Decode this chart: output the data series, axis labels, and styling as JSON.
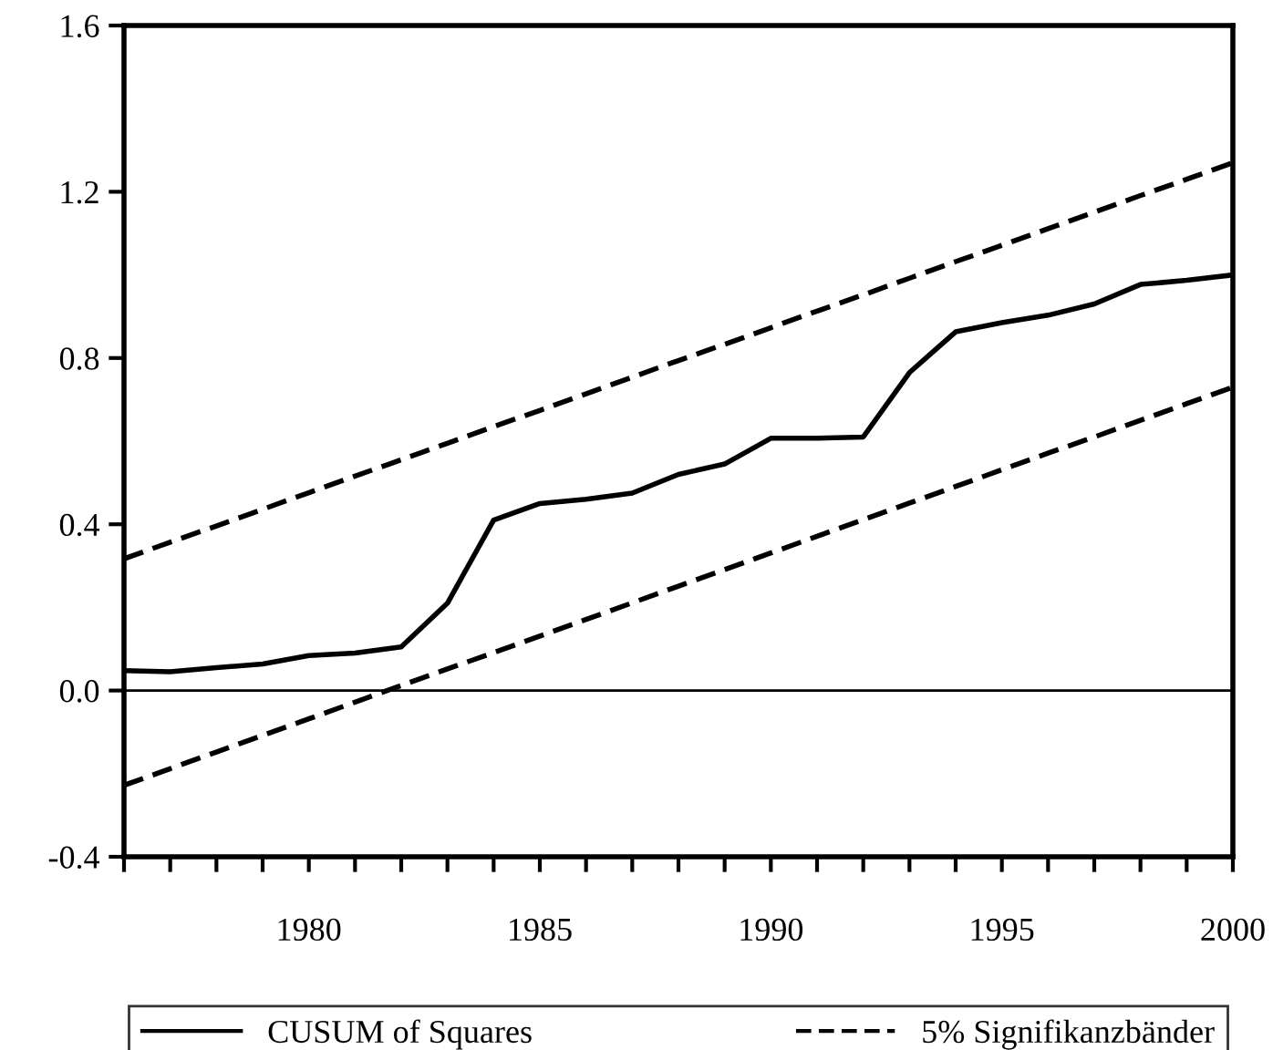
{
  "chart_data": {
    "type": "line",
    "x": [
      1976,
      1977,
      1978,
      1979,
      1980,
      1981,
      1982,
      1983,
      1984,
      1985,
      1986,
      1987,
      1988,
      1989,
      1990,
      1991,
      1992,
      1993,
      1994,
      1995,
      1996,
      1997,
      1998,
      1999,
      2000
    ],
    "series": [
      {
        "name": "CUSUM of Squares",
        "color": "#000000",
        "line_style": "solid",
        "values": [
          0.048,
          0.045,
          0.055,
          0.064,
          0.084,
          0.09,
          0.105,
          0.21,
          0.41,
          0.45,
          0.46,
          0.475,
          0.52,
          0.545,
          0.607,
          0.607,
          0.61,
          0.765,
          0.863,
          0.885,
          0.903,
          0.93,
          0.977,
          0.987,
          1.0
        ]
      },
      {
        "name": "5% Signifikanzbänder",
        "color": "#000000",
        "line_style": "dashed",
        "values": [
          0.317,
          0.357,
          0.396,
          0.436,
          0.476,
          0.516,
          0.555,
          0.595,
          0.635,
          0.674,
          0.714,
          0.754,
          0.794,
          0.833,
          0.873,
          0.913,
          0.952,
          0.992,
          1.032,
          1.071,
          1.111,
          1.151,
          1.191,
          1.23,
          1.27
        ]
      },
      {
        "color": "#000000",
        "line_style": "dashed",
        "values": [
          -0.228,
          -0.188,
          -0.148,
          -0.108,
          -0.068,
          -0.028,
          0.012,
          0.052,
          0.091,
          0.131,
          0.171,
          0.211,
          0.251,
          0.291,
          0.331,
          0.371,
          0.411,
          0.451,
          0.491,
          0.531,
          0.571,
          0.61,
          0.65,
          0.69,
          0.73
        ]
      }
    ],
    "xlim": [
      1976,
      2000
    ],
    "xticks": [
      {
        "value": 1976,
        "label": null
      },
      {
        "value": 1977,
        "label": null
      },
      {
        "value": 1978,
        "label": null
      },
      {
        "value": 1979,
        "label": null
      },
      1980,
      {
        "value": 1981,
        "label": null
      },
      {
        "value": 1982,
        "label": null
      },
      {
        "value": 1983,
        "label": null
      },
      {
        "value": 1984,
        "label": null
      },
      1985,
      {
        "value": 1986,
        "label": null
      },
      {
        "value": 1987,
        "label": null
      },
      {
        "value": 1988,
        "label": null
      },
      {
        "value": 1989,
        "label": null
      },
      1990,
      {
        "value": 1991,
        "label": null
      },
      {
        "value": 1992,
        "label": null
      },
      {
        "value": 1993,
        "label": null
      },
      {
        "value": 1994,
        "label": null
      },
      1995,
      {
        "value": 1996,
        "label": null
      },
      {
        "value": 1997,
        "label": null
      },
      {
        "value": 1998,
        "label": null
      },
      {
        "value": 1999,
        "label": null
      },
      2000
    ],
    "ylim": [
      -0.4,
      1.6
    ],
    "yticks": [
      {
        "value": -0.4,
        "label": "-0.4"
      },
      {
        "value": 0,
        "label": "0.0"
      },
      {
        "value": 0.4,
        "label": "0.4"
      },
      {
        "value": 0.8,
        "label": "0.8"
      },
      {
        "value": 1.2,
        "label": "1.2"
      },
      {
        "value": 1.6,
        "label": "1.6"
      }
    ],
    "ref_lines": [
      {
        "axis": "y",
        "value": 0,
        "color": "#000000",
        "line_style": "solid"
      }
    ],
    "grid": false,
    "legend": "bottom"
  }
}
